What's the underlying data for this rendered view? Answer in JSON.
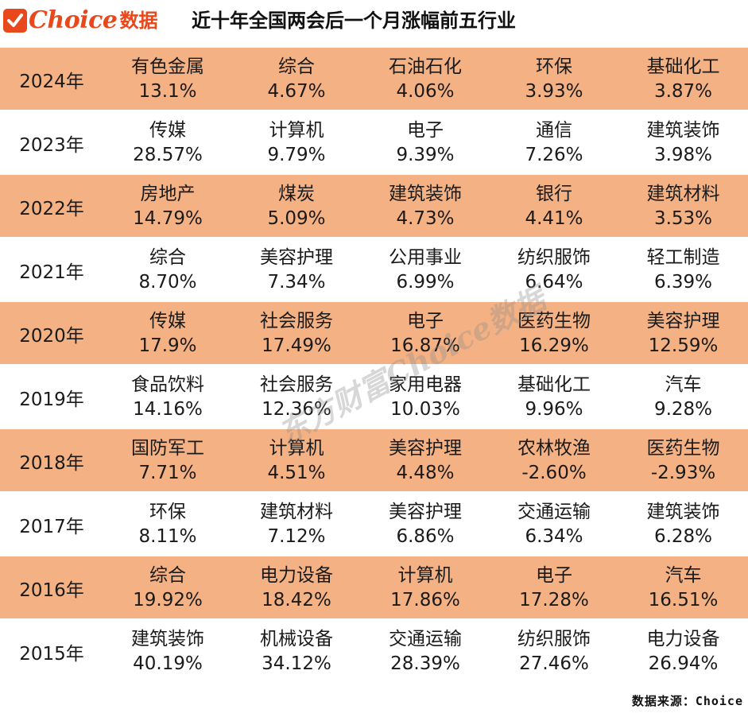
{
  "header": {
    "logo_word": "Choice",
    "logo_cn": "数据",
    "title": "近十年全国两会后一个月涨幅前五行业"
  },
  "rows": [
    {
      "year": "2024年",
      "cells": [
        {
          "name": "有色金属",
          "value": "13.1%"
        },
        {
          "name": "综合",
          "value": "4.67%"
        },
        {
          "name": "石油石化",
          "value": "4.06%"
        },
        {
          "name": "环保",
          "value": "3.93%"
        },
        {
          "name": "基础化工",
          "value": "3.87%"
        }
      ]
    },
    {
      "year": "2023年",
      "cells": [
        {
          "name": "传媒",
          "value": "28.57%"
        },
        {
          "name": "计算机",
          "value": "9.79%"
        },
        {
          "name": "电子",
          "value": "9.39%"
        },
        {
          "name": "通信",
          "value": "7.26%"
        },
        {
          "name": "建筑装饰",
          "value": "3.98%"
        }
      ]
    },
    {
      "year": "2022年",
      "cells": [
        {
          "name": "房地产",
          "value": "14.79%"
        },
        {
          "name": "煤炭",
          "value": "5.09%"
        },
        {
          "name": "建筑装饰",
          "value": "4.73%"
        },
        {
          "name": "银行",
          "value": "4.41%"
        },
        {
          "name": "建筑材料",
          "value": "3.53%"
        }
      ]
    },
    {
      "year": "2021年",
      "cells": [
        {
          "name": "综合",
          "value": "8.70%"
        },
        {
          "name": "美容护理",
          "value": "7.34%"
        },
        {
          "name": "公用事业",
          "value": "6.99%"
        },
        {
          "name": "纺织服饰",
          "value": "6.64%"
        },
        {
          "name": "轻工制造",
          "value": "6.39%"
        }
      ]
    },
    {
      "year": "2020年",
      "cells": [
        {
          "name": "传媒",
          "value": "17.9%"
        },
        {
          "name": "社会服务",
          "value": "17.49%"
        },
        {
          "name": "电子",
          "value": "16.87%"
        },
        {
          "name": "医药生物",
          "value": "16.29%"
        },
        {
          "name": "美容护理",
          "value": "12.59%"
        }
      ]
    },
    {
      "year": "2019年",
      "cells": [
        {
          "name": "食品饮料",
          "value": "14.16%"
        },
        {
          "name": "社会服务",
          "value": "12.36%"
        },
        {
          "name": "家用电器",
          "value": "10.03%"
        },
        {
          "name": "基础化工",
          "value": "9.96%"
        },
        {
          "name": "汽车",
          "value": "9.28%"
        }
      ]
    },
    {
      "year": "2018年",
      "cells": [
        {
          "name": "国防军工",
          "value": "7.71%"
        },
        {
          "name": "计算机",
          "value": "4.51%"
        },
        {
          "name": "美容护理",
          "value": "4.48%"
        },
        {
          "name": "农林牧渔",
          "value": "-2.60%"
        },
        {
          "name": "医药生物",
          "value": "-2.93%"
        }
      ]
    },
    {
      "year": "2017年",
      "cells": [
        {
          "name": "环保",
          "value": "8.11%"
        },
        {
          "name": "建筑材料",
          "value": "7.12%"
        },
        {
          "name": "美容护理",
          "value": "6.86%"
        },
        {
          "name": "交通运输",
          "value": "6.34%"
        },
        {
          "name": "建筑装饰",
          "value": "6.28%"
        }
      ]
    },
    {
      "year": "2016年",
      "cells": [
        {
          "name": "综合",
          "value": "19.92%"
        },
        {
          "name": "电力设备",
          "value": "18.42%"
        },
        {
          "name": "计算机",
          "value": "17.86%"
        },
        {
          "name": "电子",
          "value": "17.28%"
        },
        {
          "name": "汽车",
          "value": "16.51%"
        }
      ]
    },
    {
      "year": "2015年",
      "cells": [
        {
          "name": "建筑装饰",
          "value": "40.19%"
        },
        {
          "name": "机械设备",
          "value": "34.12%"
        },
        {
          "name": "交通运输",
          "value": "28.39%"
        },
        {
          "name": "纺织服饰",
          "value": "27.46%"
        },
        {
          "name": "电力设备",
          "value": "26.94%"
        }
      ]
    }
  ],
  "source": "数据来源：Choice",
  "watermark": "东方财富Choice数据",
  "colors": {
    "shaded_row": "#f4b183",
    "plain_row": "#ffffff",
    "brand": "#e8481c"
  }
}
